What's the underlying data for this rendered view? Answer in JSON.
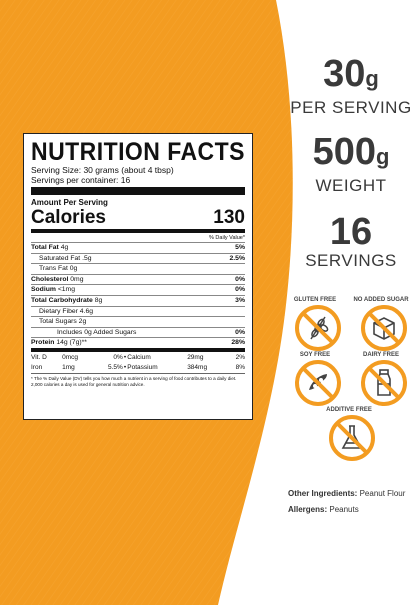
{
  "colors": {
    "orange": "#F39C21",
    "orange_dark": "#E8891A",
    "text_gray": "#3a3a3a",
    "badge_orange": "#F39C21"
  },
  "nutrition": {
    "title": "NUTRITION FACTS",
    "serving_size": "Serving Size: 30 grams (about 4 tbsp)",
    "servings_per_container": "Servings per container: 16",
    "amount_per_serving": "Amount Per Serving",
    "calories_label": "Calories",
    "calories_value": "130",
    "dv_header": "% Daily Value*",
    "rows": [
      {
        "label": "Total Fat",
        "amount": "4g",
        "dv": "5%",
        "bold": true,
        "indent": 0
      },
      {
        "label": "Saturated Fat",
        "amount": ".5g",
        "dv": "2.5%",
        "bold": false,
        "indent": 1
      },
      {
        "label": "Trans Fat",
        "amount": "0g",
        "dv": "",
        "bold": false,
        "indent": 1
      },
      {
        "label": "Cholesterol",
        "amount": "0mg",
        "dv": "0%",
        "bold": true,
        "indent": 0
      },
      {
        "label": "Sodium",
        "amount": "<1mg",
        "dv": "0%",
        "bold": true,
        "indent": 0
      },
      {
        "label": "Total Carbohydrate",
        "amount": "8g",
        "dv": "3%",
        "bold": true,
        "indent": 0
      },
      {
        "label": "Dietary Fiber",
        "amount": "4.6g",
        "dv": "",
        "bold": false,
        "indent": 1
      },
      {
        "label": "Total Sugars",
        "amount": "2g",
        "dv": "",
        "bold": false,
        "indent": 1
      },
      {
        "label": "Includes 0g Added Sugars",
        "amount": "",
        "dv": "0%",
        "bold": false,
        "indent": 2
      },
      {
        "label": "Protein",
        "amount": "14g (7g)**",
        "dv": "28%",
        "bold": true,
        "indent": 0
      }
    ],
    "vitamins": [
      [
        "Vit. D",
        "0mcg",
        "0%",
        "Calcium",
        "29mg",
        "2%"
      ],
      [
        "Iron",
        "1mg",
        "5.5%",
        "Potassium",
        "384mg",
        "8%"
      ]
    ],
    "footnote": "* The % Daily Value (DV) tells you how much a nutrient in a serving of food contributes to a daily diet. 2,000 calories a day is used for general nutrition advice."
  },
  "stats": [
    {
      "num": "30",
      "unit": "g",
      "sub": "PER SERVING"
    },
    {
      "num": "500",
      "unit": "g",
      "sub": "WEIGHT"
    },
    {
      "num": "16",
      "unit": "",
      "sub": "SERVINGS"
    }
  ],
  "badges": [
    {
      "label": "GLUTEN FREE",
      "icon": "wheat-icon"
    },
    {
      "label": "NO ADDED SUGAR",
      "icon": "sugar-cube-icon"
    },
    {
      "label": "SOY FREE",
      "icon": "soybean-icon"
    },
    {
      "label": "DAIRY FREE",
      "icon": "milk-bottle-icon"
    },
    {
      "label": "ADDITIVE FREE",
      "icon": "flask-icon"
    }
  ],
  "other_ingredients": {
    "label": "Other Ingredients:",
    "value": "Peanut Flour"
  },
  "allergens": {
    "label": "Allergens:",
    "value": "Peanuts"
  }
}
